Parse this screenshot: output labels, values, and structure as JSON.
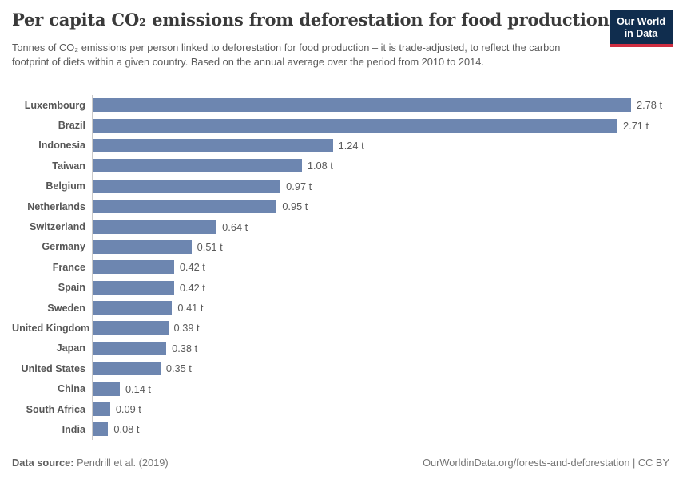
{
  "header": {
    "title": "Per capita CO₂ emissions from deforestation for food production",
    "subtitle": "Tonnes of CO₂ emissions per person linked to deforestation for food production – it is trade-adjusted, to reflect the carbon footprint of diets within a given country. Based on the annual average over the period from 2010 to 2014.",
    "logo": {
      "line1": "Our World",
      "line2": "in Data"
    }
  },
  "chart_data": {
    "type": "bar",
    "orientation": "horizontal",
    "title": "Per capita CO₂ emissions from deforestation for food production",
    "xlabel": "",
    "ylabel": "",
    "unit": "t",
    "xlim": [
      0,
      2.78
    ],
    "grid": false,
    "legend": false,
    "bar_color": "#6d86b0",
    "categories": [
      "Luxembourg",
      "Brazil",
      "Indonesia",
      "Taiwan",
      "Belgium",
      "Netherlands",
      "Switzerland",
      "Germany",
      "France",
      "Spain",
      "Sweden",
      "United Kingdom",
      "Japan",
      "United States",
      "China",
      "South Africa",
      "India"
    ],
    "values": [
      2.78,
      2.71,
      1.24,
      1.08,
      0.97,
      0.95,
      0.64,
      0.51,
      0.42,
      0.42,
      0.41,
      0.39,
      0.38,
      0.35,
      0.14,
      0.09,
      0.08
    ],
    "labels": [
      "2.78 t",
      "2.71 t",
      "1.24 t",
      "1.08 t",
      "0.97 t",
      "0.95 t",
      "0.64 t",
      "0.51 t",
      "0.42 t",
      "0.42 t",
      "0.41 t",
      "0.39 t",
      "0.38 t",
      "0.35 t",
      "0.14 t",
      "0.09 t",
      "0.08 t"
    ]
  },
  "footer": {
    "datasource_label": "Data source:",
    "datasource_value": " Pendrill et al. (2019)",
    "link": "OurWorldinData.org/forests-and-deforestation | CC BY"
  },
  "colors": {
    "bar": "#6d86b0",
    "axis_line": "#c9c9c9",
    "logo_navy": "#102d4e",
    "logo_red": "#cf2e41"
  }
}
